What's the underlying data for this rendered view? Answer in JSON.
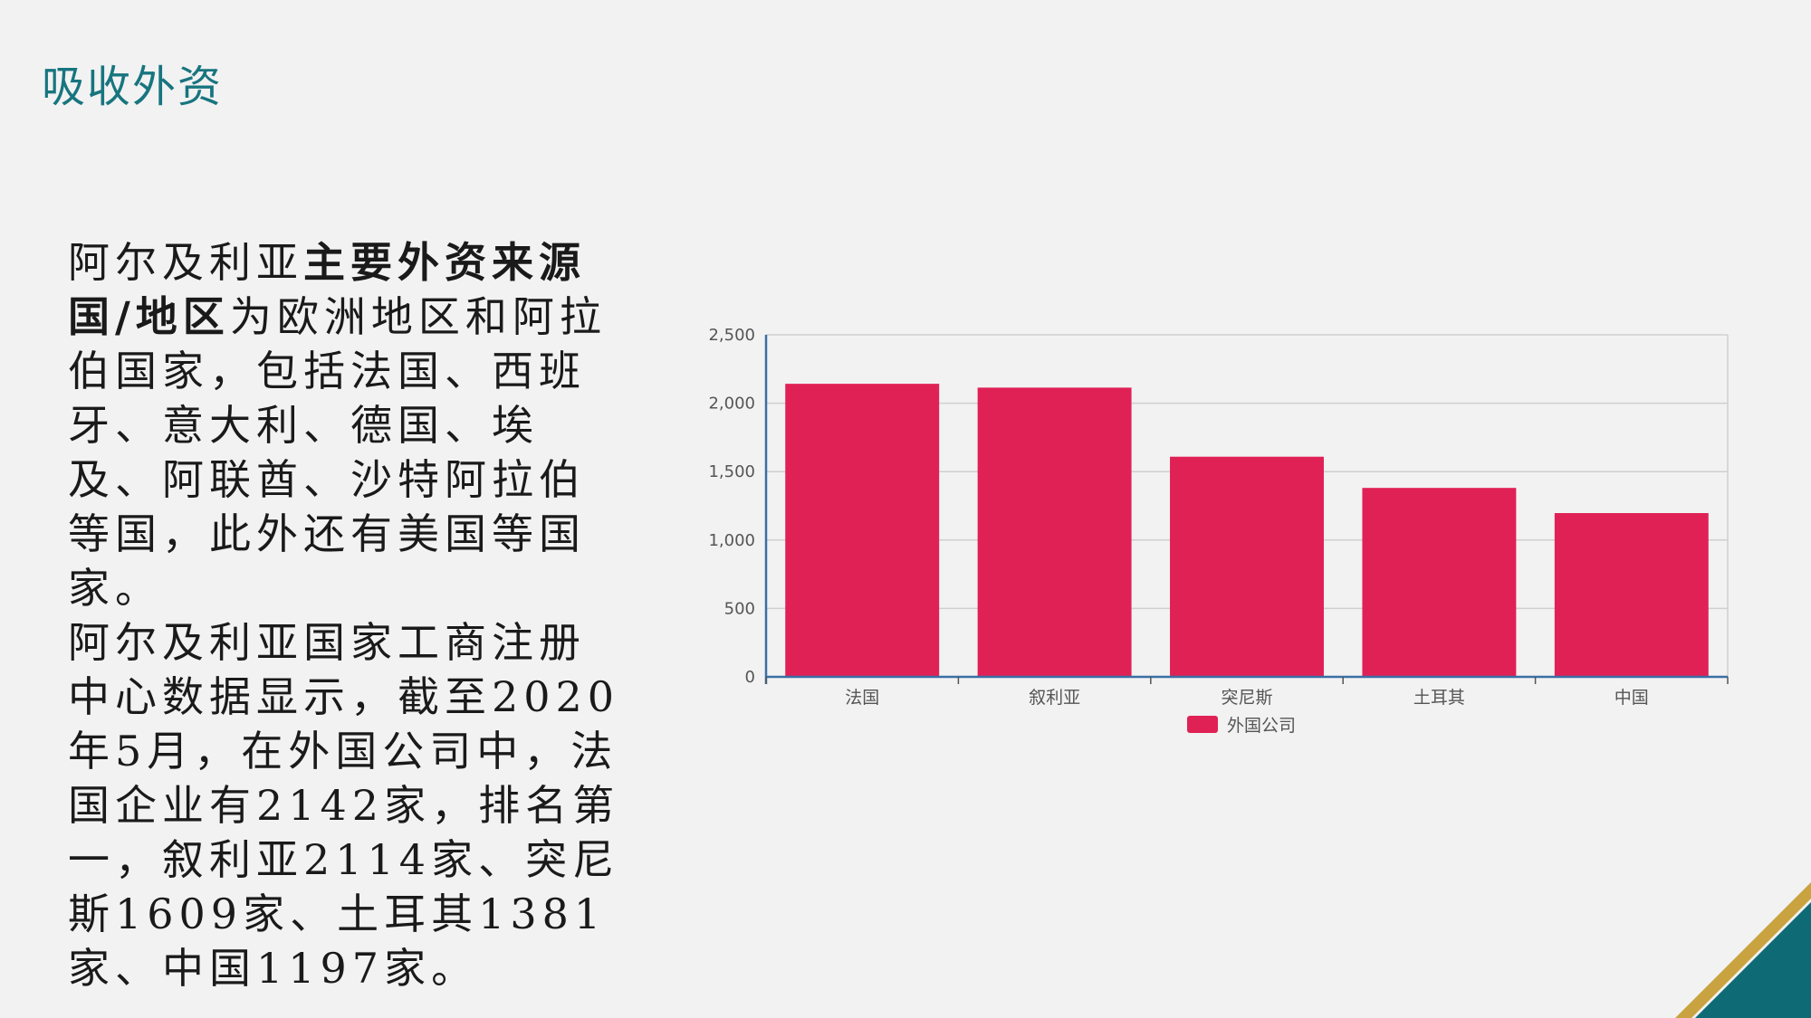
{
  "slide": {
    "title": "吸收外资"
  },
  "body": {
    "p1_prefix": "阿尔及利亚",
    "p1_bold": "主要外资来源国/地区",
    "p1_suffix": "为欧洲地区和阿拉伯国家，包括法国、西班牙、意大利、德国、埃及、阿联酋、沙特阿拉伯等国，此外还有美国等国家。",
    "p2": "阿尔及利亚国家工商注册中心数据显示，截至2020年5月，在外国公司中，法国企业有2142家，排名第一，叙利亚2114家、突尼斯1609家、土耳其1381家、中国1197家。"
  },
  "chart_data": {
    "type": "bar",
    "categories": [
      "法国",
      "叙利亚",
      "突尼斯",
      "土耳其",
      "中国"
    ],
    "series": [
      {
        "name": "外国公司",
        "values": [
          2142,
          2114,
          1609,
          1381,
          1197
        ]
      }
    ],
    "ylim": [
      0,
      2500
    ],
    "yticks": [
      0,
      500,
      1000,
      1500,
      2000,
      2500
    ],
    "ytick_labels": [
      "0",
      "500",
      "1,000",
      "1,500",
      "2,000",
      "2,500"
    ],
    "grid": true,
    "legend": "bottom-center",
    "colors": {
      "bar": "#e02155",
      "axis": "#3b6ea5",
      "grid": "#cfcfcf"
    }
  },
  "decoration": {
    "colors": {
      "title": "#17757f",
      "corner_teal": "#0e6b76",
      "corner_gold": "#c9a33f"
    }
  }
}
